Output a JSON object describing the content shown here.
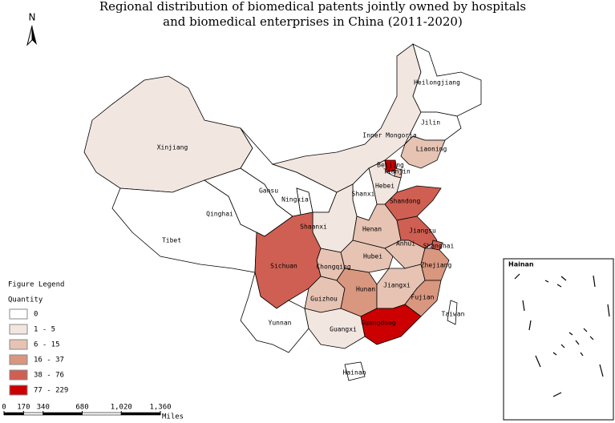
{
  "title": [
    "Regional distribution of biomedical patents jointly owned by hospitals",
    "and biomedical enterprises in China (2011-2020)"
  ],
  "north": "N",
  "provinces": [
    {
      "name": "Xinjiang",
      "color": "#f2e6e0"
    },
    {
      "name": "Tibet",
      "color": "#ffffff"
    },
    {
      "name": "Qinghai",
      "color": "#ffffff"
    },
    {
      "name": "Gansu",
      "color": "#ffffff"
    },
    {
      "name": "Ningxia",
      "color": "#ffffff"
    },
    {
      "name": "Inner Mongoria",
      "color": "#f2e6e0"
    },
    {
      "name": "Heilongjiang",
      "color": "#ffffff"
    },
    {
      "name": "Jilin",
      "color": "#ffffff"
    },
    {
      "name": "Liaoning",
      "color": "#e6c3b3"
    },
    {
      "name": "Beijing",
      "color": "#cc0000"
    },
    {
      "name": "Tianjin",
      "color": "#e6c3b3"
    },
    {
      "name": "Hebei",
      "color": "#f2e6e0"
    },
    {
      "name": "Shanxi",
      "color": "#ffffff"
    },
    {
      "name": "Shandong",
      "color": "#cf5f52"
    },
    {
      "name": "Shaanxi",
      "color": "#f2e6e0"
    },
    {
      "name": "Henan",
      "color": "#e6c3b3"
    },
    {
      "name": "Jiangsu",
      "color": "#cf5f52"
    },
    {
      "name": "Shanghai",
      "color": "#cf5f52"
    },
    {
      "name": "Anhui",
      "color": "#e6c3b3"
    },
    {
      "name": "Hubei",
      "color": "#e6c3b3"
    },
    {
      "name": "Chongqing",
      "color": "#e6c3b3"
    },
    {
      "name": "Sichuan",
      "color": "#cf5f52"
    },
    {
      "name": "Zhejiang",
      "color": "#d9977f"
    },
    {
      "name": "Guizhou",
      "color": "#e6c3b3"
    },
    {
      "name": "Hunan",
      "color": "#d9977f"
    },
    {
      "name": "Jiangxi",
      "color": "#e6c3b3"
    },
    {
      "name": "Fujian",
      "color": "#d9977f"
    },
    {
      "name": "Yunnan",
      "color": "#ffffff"
    },
    {
      "name": "Guangxi",
      "color": "#f2e6e0"
    },
    {
      "name": "Guangdong",
      "color": "#cc0000"
    },
    {
      "name": "Hainan",
      "color": "#ffffff"
    },
    {
      "name": "Taiwan",
      "color": "#ffffff"
    }
  ],
  "legend": {
    "title": "Figure Legend",
    "subtitle": "Quantity",
    "items": [
      {
        "label": "0",
        "color": "#ffffff"
      },
      {
        "label": "1 - 5",
        "color": "#f2e6e0"
      },
      {
        "label": "6 - 15",
        "color": "#e6c3b3"
      },
      {
        "label": "16 - 37",
        "color": "#d9977f"
      },
      {
        "label": "38 - 76",
        "color": "#cf5f52"
      },
      {
        "label": "77 - 229",
        "color": "#cc0000"
      }
    ]
  },
  "scale_bar": {
    "ticks": [
      0,
      170,
      340,
      680,
      {
        "value": 1020,
        "label": "1,020"
      },
      {
        "value": 1360,
        "label": "1,360"
      }
    ],
    "unit": "Miles"
  },
  "inset": {
    "title": "Hainan"
  }
}
